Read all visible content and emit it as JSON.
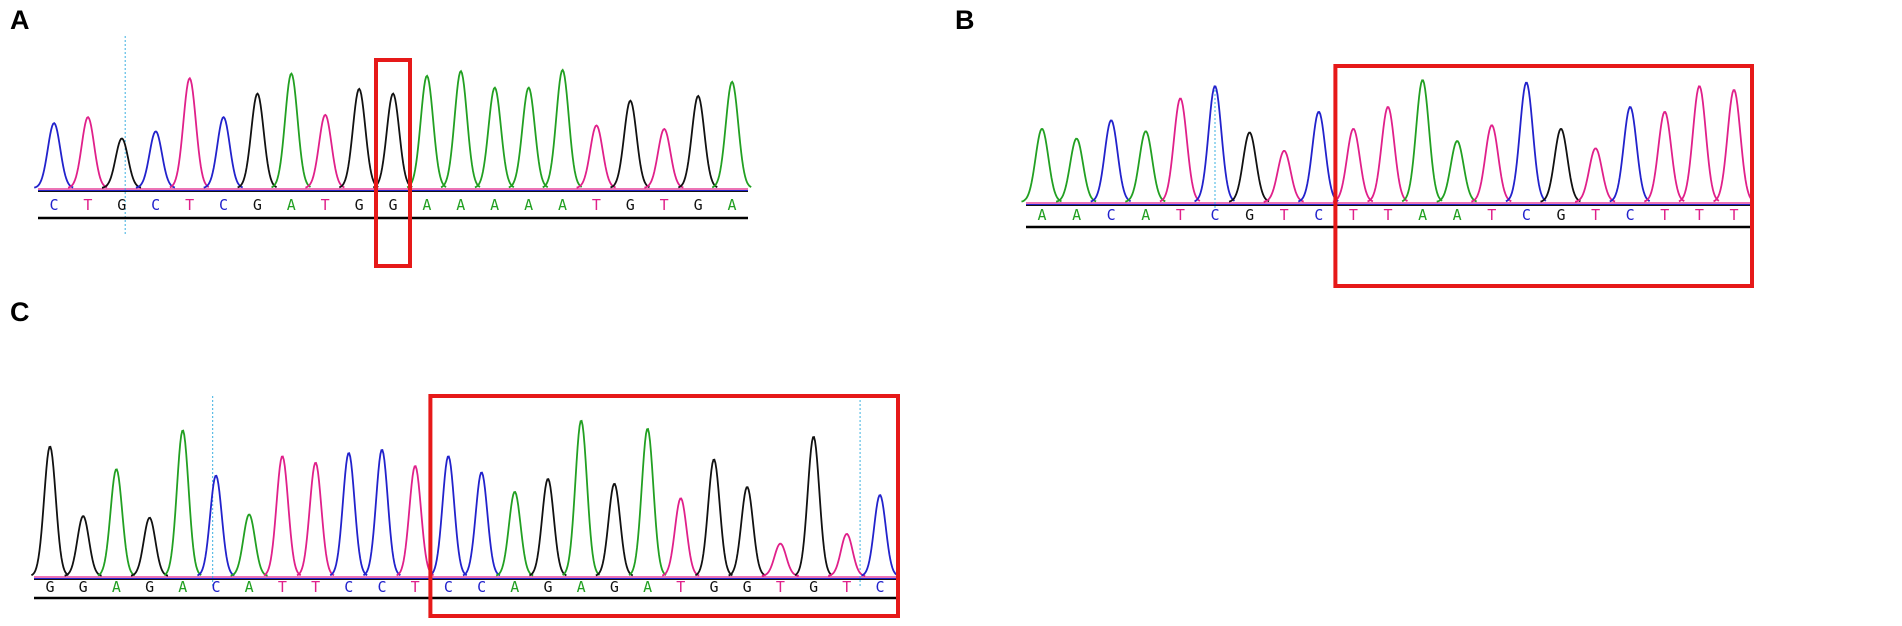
{
  "colors": {
    "A": "#22a022",
    "C": "#2222cc",
    "G": "#111111",
    "T": "#e0208a",
    "highlight": "#e61919",
    "cursor": "#3ab0e0",
    "baseline": "#000000"
  },
  "panels": [
    {
      "id": "A",
      "label": "A",
      "bases": [
        "C",
        "T",
        "G",
        "C",
        "T",
        "C",
        "G",
        "A",
        "T",
        "G",
        "G",
        "A",
        "A",
        "A",
        "A",
        "A",
        "T",
        "G",
        "T",
        "G",
        "A"
      ],
      "peak_heights": [
        0.55,
        0.6,
        0.42,
        0.48,
        0.93,
        0.6,
        0.8,
        0.97,
        0.62,
        0.84,
        0.8,
        0.95,
        0.99,
        0.85,
        0.85,
        1.0,
        0.53,
        0.74,
        0.5,
        0.78,
        0.9
      ],
      "highlight_range": [
        10,
        10
      ],
      "cursor_positions": [
        2.1
      ]
    },
    {
      "id": "B",
      "label": "B",
      "bases": [
        "A",
        "A",
        "C",
        "A",
        "T",
        "C",
        "G",
        "T",
        "C",
        "T",
        "T",
        "A",
        "A",
        "T",
        "C",
        "G",
        "T",
        "C",
        "T",
        "T",
        "T"
      ],
      "peak_heights": [
        0.6,
        0.52,
        0.67,
        0.58,
        0.85,
        0.95,
        0.57,
        0.42,
        0.74,
        0.6,
        0.78,
        1.0,
        0.5,
        0.63,
        0.98,
        0.6,
        0.44,
        0.78,
        0.74,
        0.95,
        0.92
      ],
      "highlight_range": [
        9,
        20
      ],
      "cursor_positions": [
        5.0
      ]
    },
    {
      "id": "C",
      "label": "C",
      "bases": [
        "G",
        "G",
        "A",
        "G",
        "A",
        "C",
        "A",
        "T",
        "T",
        "C",
        "C",
        "T",
        "C",
        "C",
        "A",
        "G",
        "A",
        "G",
        "A",
        "T",
        "G",
        "G",
        "T",
        "G",
        "T",
        "C"
      ],
      "peak_heights": [
        0.8,
        0.37,
        0.66,
        0.36,
        0.9,
        0.62,
        0.38,
        0.74,
        0.7,
        0.76,
        0.78,
        0.68,
        0.74,
        0.64,
        0.52,
        0.6,
        0.96,
        0.57,
        0.91,
        0.48,
        0.72,
        0.55,
        0.2,
        0.86,
        0.26,
        0.5
      ],
      "highlight_range": [
        12,
        25
      ],
      "cursor_positions": [
        4.9,
        24.4
      ]
    }
  ]
}
